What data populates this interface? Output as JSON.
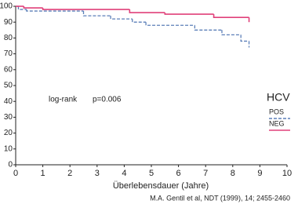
{
  "chart_data": {
    "type": "line",
    "step": true,
    "xlabel": "Überlebensdauer (Jahre)",
    "xlim": [
      0,
      10
    ],
    "xticks": [
      0,
      1,
      2,
      3,
      4,
      5,
      6,
      7,
      8,
      9,
      10
    ],
    "ylim": [
      0,
      100
    ],
    "yticks": [
      0,
      10,
      20,
      30,
      40,
      50,
      60,
      70,
      80,
      90,
      100
    ],
    "grid": false,
    "legend_title": "HCV",
    "annotations": [
      "log-rank",
      "p=0.006"
    ],
    "source": "M.A. Gentil et al, NDT (1999), 14; 2455-2460",
    "series": [
      {
        "name": "POS",
        "color": "#5b7fb8",
        "dashed": true,
        "x": [
          0,
          0.1,
          0.4,
          2.5,
          3.5,
          4.3,
          4.8,
          6.6,
          7.6,
          8.3,
          8.6
        ],
        "values": [
          100,
          98,
          97,
          94,
          92,
          90,
          88,
          85,
          82,
          78,
          74
        ]
      },
      {
        "name": "NEG",
        "color": "#e0407a",
        "dashed": false,
        "x": [
          0,
          0.3,
          1,
          4.2,
          5.5,
          7.3,
          8.6
        ],
        "values": [
          100,
          99,
          98,
          96,
          95,
          93,
          90
        ]
      }
    ]
  }
}
